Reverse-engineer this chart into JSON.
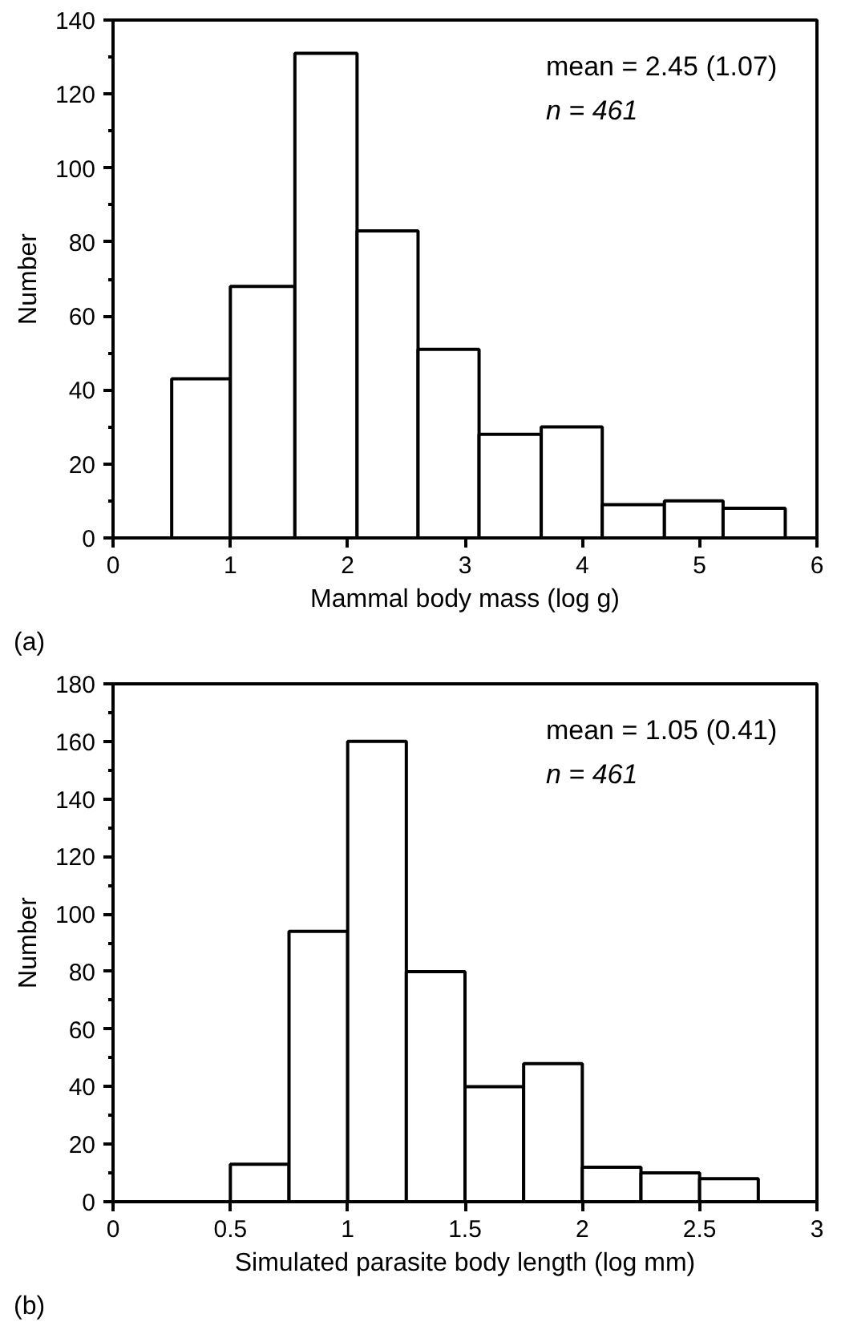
{
  "chart_data": [
    {
      "type": "histogram",
      "title": "(a)",
      "xlabel": "Mammal body mass (log g)",
      "ylabel": "Number",
      "bins": [
        0.5,
        1.0,
        1.55,
        2.08,
        2.6,
        3.12,
        3.65,
        4.17,
        4.7,
        5.2,
        5.73
      ],
      "values": [
        43,
        68,
        131,
        83,
        51,
        28,
        30,
        9,
        10,
        8
      ],
      "color": "#ffffff",
      "xlim": [
        0,
        6
      ],
      "ylim": [
        0,
        140
      ],
      "xticks": [
        0,
        1,
        2,
        3,
        4,
        5,
        6
      ],
      "yticks": [
        0,
        20,
        40,
        60,
        80,
        100,
        120,
        140
      ],
      "grid": false,
      "annotations": [
        "mean = 2.45 (1.07)",
        "n = 461"
      ]
    },
    {
      "type": "histogram",
      "title": "(b)",
      "xlabel": "Simulated parasite body length (log mm)",
      "ylabel": "Number",
      "bins": [
        0.5,
        0.75,
        1.0,
        1.25,
        1.5,
        1.75,
        2.0,
        2.25,
        2.5,
        2.75
      ],
      "values": [
        13,
        94,
        160,
        80,
        40,
        48,
        12,
        10,
        8
      ],
      "color": "#ffffff",
      "xlim": [
        0,
        3
      ],
      "ylim": [
        0,
        180
      ],
      "xticks": [
        0,
        0.5,
        1,
        1.5,
        2,
        2.5,
        3
      ],
      "yticks": [
        0,
        20,
        40,
        60,
        80,
        100,
        120,
        140,
        160,
        180
      ],
      "grid": false,
      "annotations": [
        "mean = 1.05 (0.41)",
        "n = 461"
      ]
    }
  ]
}
